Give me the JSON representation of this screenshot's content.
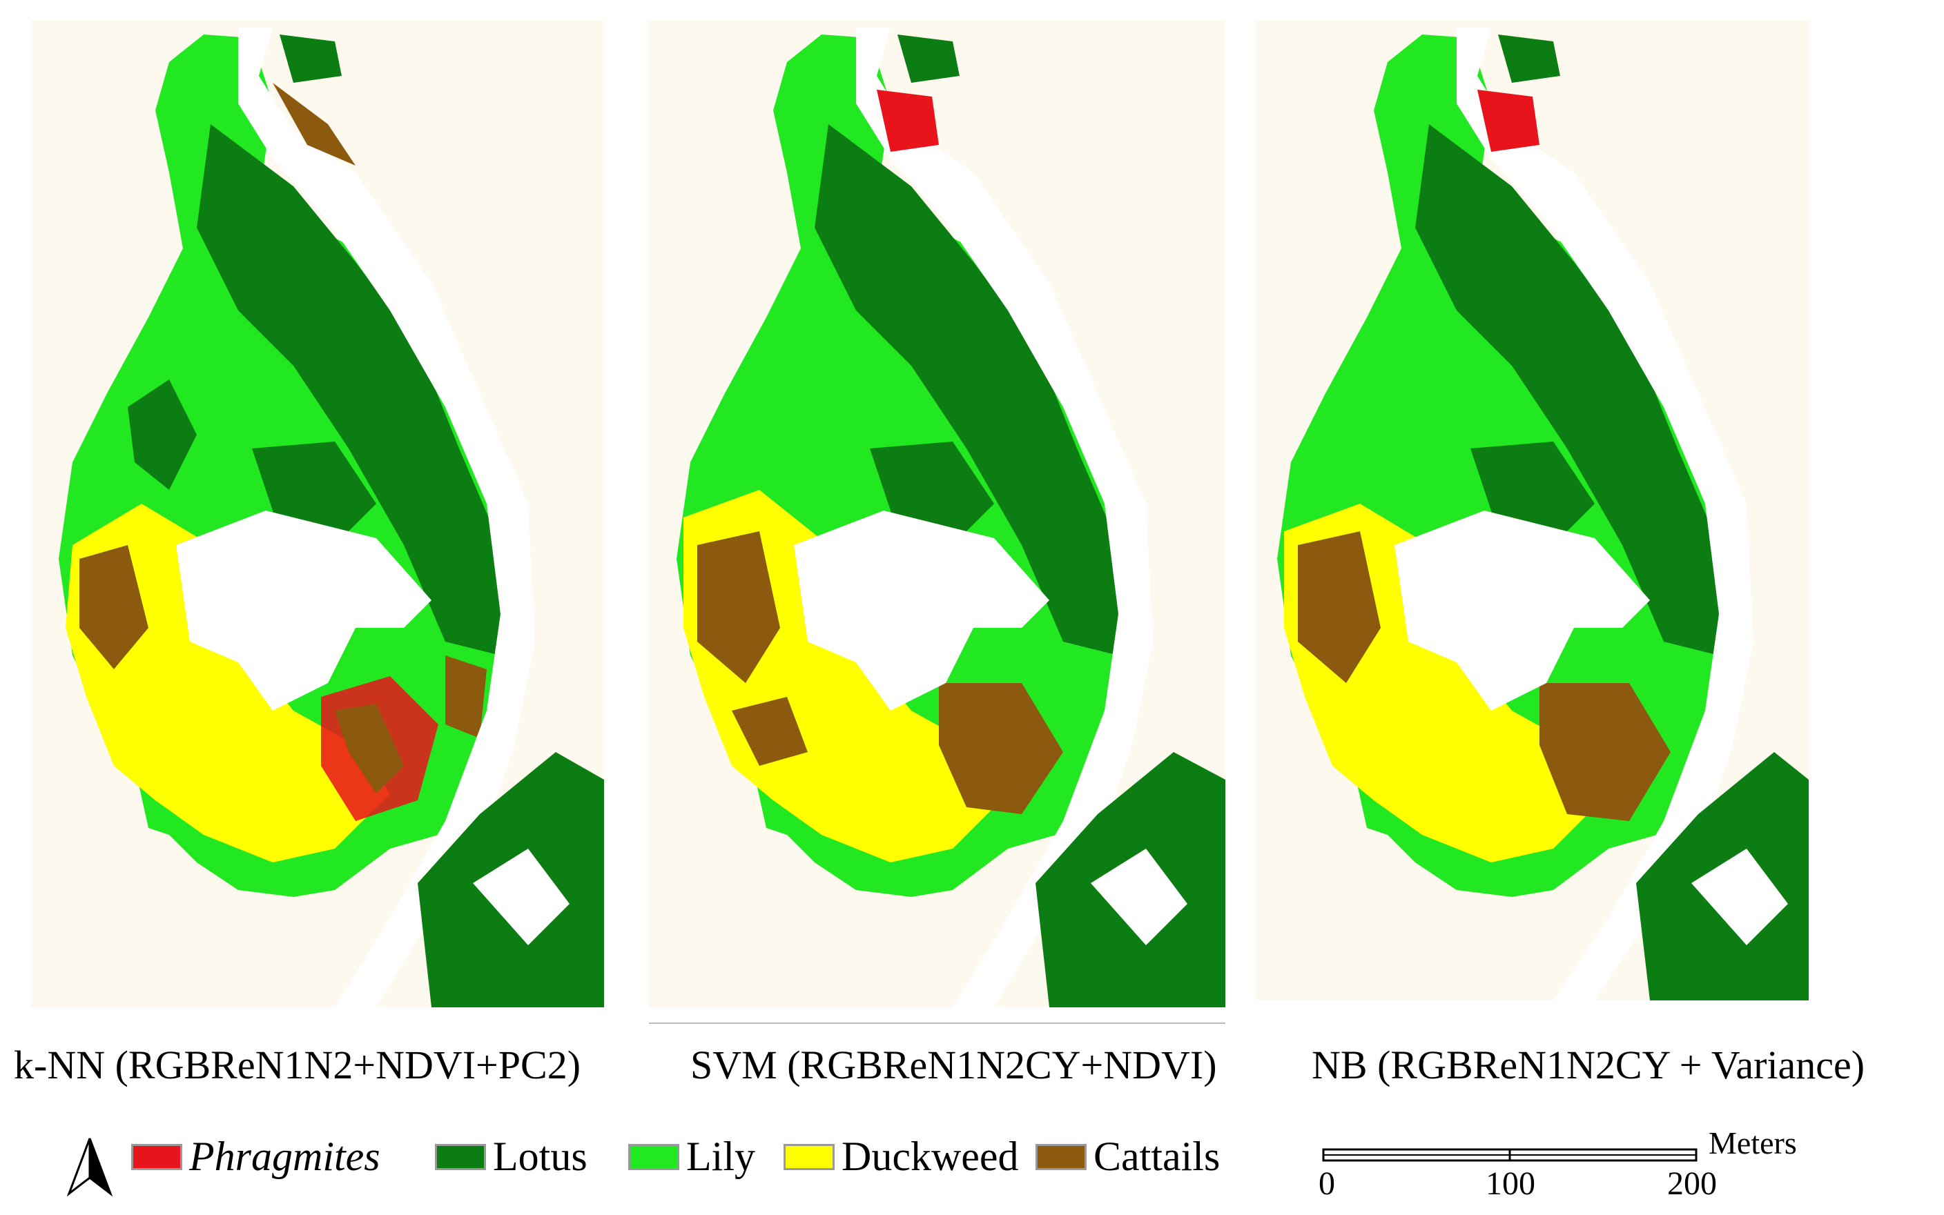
{
  "panels": [
    {
      "id": "knn",
      "caption": "k-NN (RGBReN1N2+NDVI+PC2)"
    },
    {
      "id": "svm",
      "caption": "SVM (RGBReN1N2CY+NDVI)"
    },
    {
      "id": "nb",
      "caption": "NB (RGBReN1N2CY + Variance)"
    }
  ],
  "legend": [
    {
      "label": "Phragmites",
      "color": "#e8131b",
      "italic": true
    },
    {
      "label": "Lotus",
      "color": "#0c7d12",
      "italic": false
    },
    {
      "label": "Lily",
      "color": "#22e822",
      "italic": false
    },
    {
      "label": "Duckweed",
      "color": "#ffff00",
      "italic": false
    },
    {
      "label": "Cattails",
      "color": "#8c5a0e",
      "italic": false
    }
  ],
  "scalebar": {
    "units": "Meters",
    "ticks": [
      "0",
      "100",
      "200"
    ]
  },
  "colors": {
    "background": "#fdf9ef",
    "water": "#ffffff"
  },
  "icons": {
    "north": "north-arrow-icon"
  }
}
